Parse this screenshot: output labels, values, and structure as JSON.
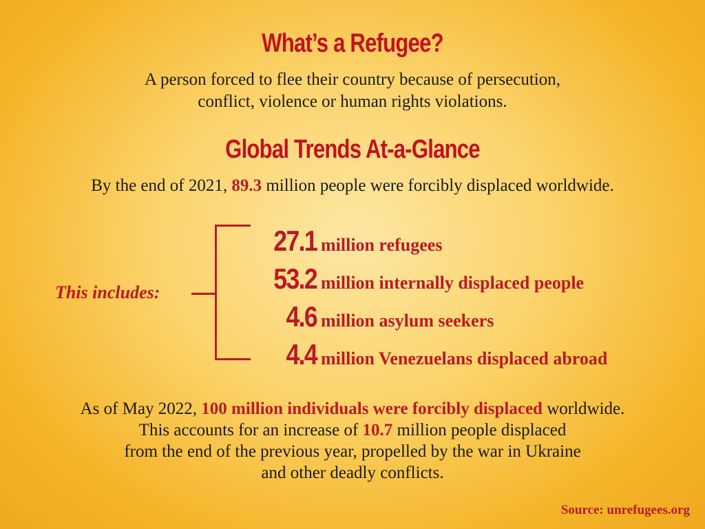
{
  "title": "What’s a Refugee?",
  "definition": {
    "line1": "A person forced to flee their country because of persecution,",
    "line2": "conflict, violence or human rights violations."
  },
  "trends_heading": "Global Trends At-a-Glance",
  "trends_intro": {
    "prefix": "By the end of 2021, ",
    "highlight": "89.3",
    "suffix": " million people were forcibly displaced worldwide."
  },
  "includes_label": "This includes:",
  "breakdown": [
    {
      "value": "27.1",
      "label": "million refugees"
    },
    {
      "value": "53.2",
      "label": "million internally displaced people"
    },
    {
      "value": "4.6",
      "label": "million asylum seekers"
    },
    {
      "value": "4.4",
      "label": "million Venezuelans displaced abroad"
    }
  ],
  "update": {
    "line1_prefix": "As of May 2022, ",
    "line1_highlight": "100 million individuals were forcibly displaced",
    "line1_suffix": " worldwide.",
    "line2_prefix": "This accounts for an increase of ",
    "line2_highlight": "10.7",
    "line2_suffix": " million people displaced",
    "line3": "from the end of the previous year, propelled by the war in Ukraine",
    "line4": "and other deadly conflicts."
  },
  "source": "Source: unrefugees.org",
  "colors": {
    "accent": "#b81b26",
    "background": "#f5b62c"
  }
}
